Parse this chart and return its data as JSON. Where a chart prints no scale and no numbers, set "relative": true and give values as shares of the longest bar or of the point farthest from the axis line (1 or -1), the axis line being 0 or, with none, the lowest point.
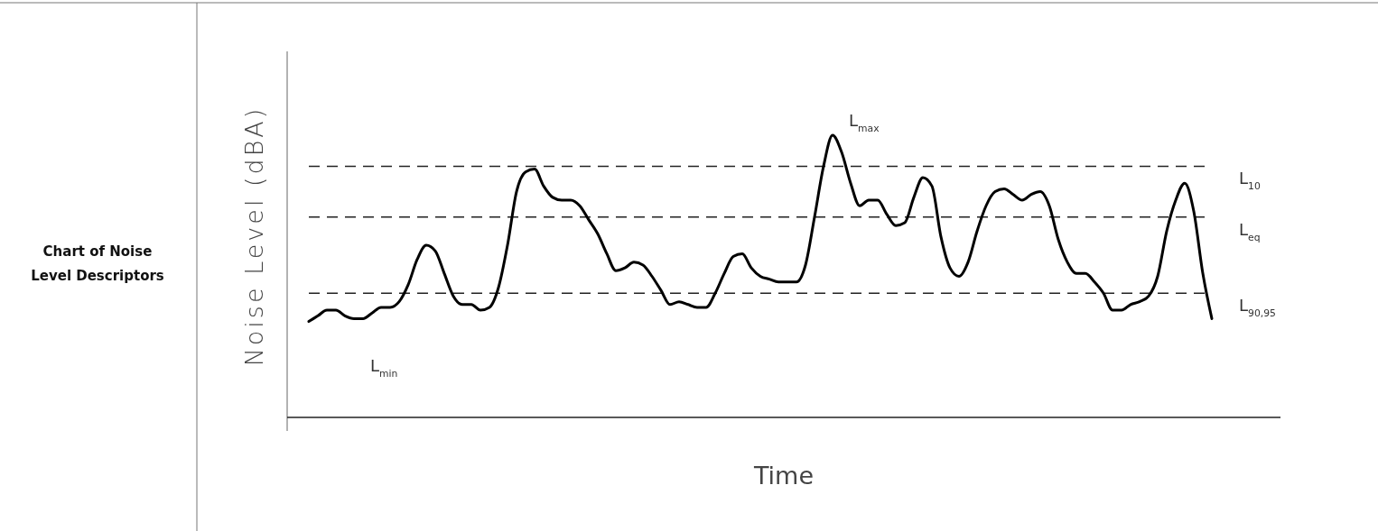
{
  "chart_data": {
    "type": "line",
    "title": "Chart of Noise Level Descriptors",
    "xlabel": "Time",
    "ylabel": "Noise Level (dBA)",
    "relative": true,
    "line_style": "solid",
    "marker": "none",
    "categories": [
      null,
      null,
      null,
      null,
      null,
      null,
      null,
      null,
      null,
      null,
      null,
      null,
      null,
      null,
      null,
      null,
      null,
      null,
      null,
      null,
      null,
      null,
      null,
      null,
      null,
      null,
      null,
      null,
      null,
      null,
      null,
      null,
      null,
      null,
      null,
      null,
      null,
      null,
      null,
      null,
      null,
      null,
      null,
      null,
      null,
      null,
      null,
      null,
      null,
      null,
      null,
      null,
      null,
      null,
      null,
      null,
      null,
      null,
      null,
      null,
      null,
      null,
      null,
      null,
      null,
      null,
      null,
      null,
      null,
      null,
      null,
      null,
      null,
      null,
      null,
      null,
      null,
      null,
      null,
      null,
      null,
      null,
      null,
      null,
      null,
      null,
      null,
      null,
      null,
      null,
      null,
      null,
      null,
      null,
      null,
      null,
      null,
      null,
      null,
      null,
      null
    ],
    "series": [
      {
        "color": "#000000",
        "values": [
          0.34,
          0.36,
          0.38,
          0.38,
          0.36,
          0.35,
          0.35,
          0.37,
          0.39,
          0.39,
          0.41,
          0.47,
          0.56,
          0.61,
          0.59,
          0.51,
          0.43,
          0.4,
          0.4,
          0.38,
          0.39,
          0.46,
          0.61,
          0.8,
          0.87,
          0.88,
          0.82,
          0.78,
          0.77,
          0.77,
          0.75,
          0.7,
          0.65,
          0.58,
          0.52,
          0.53,
          0.55,
          0.54,
          0.5,
          0.45,
          0.4,
          0.41,
          0.4,
          0.39,
          0.39,
          0.44,
          0.51,
          0.57,
          0.58,
          0.53,
          0.5,
          0.49,
          0.48,
          0.48,
          0.48,
          0.54,
          0.71,
          0.89,
          1,
          0.94,
          0.83,
          0.75,
          0.77,
          0.77,
          0.72,
          0.68,
          0.69,
          0.78,
          0.85,
          0.82,
          0.64,
          0.53,
          0.5,
          0.55,
          0.66,
          0.75,
          0.8,
          0.81,
          0.79,
          0.77,
          0.79,
          0.8,
          0.75,
          0.63,
          0.55,
          0.51,
          0.51,
          0.48,
          0.44,
          0.38,
          0.38,
          0.4,
          0.41,
          0.43,
          0.5,
          0.66,
          0.77,
          0.83,
          0.73,
          0.51,
          0.35
        ]
      }
    ],
    "ref_lines": [
      {
        "axis": "y",
        "value": 0.89,
        "label": "L$_{10}$",
        "line_style": "dashed"
      },
      {
        "axis": "y",
        "value": 0.71,
        "label": "L$_{eq}$",
        "line_style": "dashed"
      },
      {
        "axis": "y",
        "value": 0.44,
        "label": "L$_{90,95}$",
        "line_style": "dashed"
      }
    ],
    "annotations": [
      "L$_{max}$",
      "L$_{min}$"
    ]
  }
}
